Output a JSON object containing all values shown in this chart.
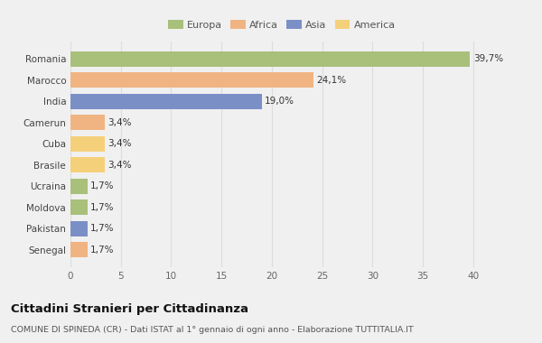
{
  "countries": [
    "Romania",
    "Marocco",
    "India",
    "Camerun",
    "Cuba",
    "Brasile",
    "Ucraina",
    "Moldova",
    "Pakistan",
    "Senegal"
  ],
  "values": [
    39.7,
    24.1,
    19.0,
    3.4,
    3.4,
    3.4,
    1.7,
    1.7,
    1.7,
    1.7
  ],
  "labels": [
    "39,7%",
    "24,1%",
    "19,0%",
    "3,4%",
    "3,4%",
    "3,4%",
    "1,7%",
    "1,7%",
    "1,7%",
    "1,7%"
  ],
  "colors": [
    "#a8c07a",
    "#f0b482",
    "#7b8fc7",
    "#f0b482",
    "#f5d07a",
    "#f5d07a",
    "#a8c07a",
    "#a8c07a",
    "#7b8fc7",
    "#f0b482"
  ],
  "legend_labels": [
    "Europa",
    "Africa",
    "Asia",
    "America"
  ],
  "legend_colors": [
    "#a8c07a",
    "#f0b482",
    "#7b8fc7",
    "#f5d07a"
  ],
  "xlim": [
    0,
    42
  ],
  "xticks": [
    0,
    5,
    10,
    15,
    20,
    25,
    30,
    35,
    40
  ],
  "title": "Cittadini Stranieri per Cittadinanza",
  "subtitle": "COMUNE DI SPINEDA (CR) - Dati ISTAT al 1° gennaio di ogni anno - Elaborazione TUTTITALIA.IT",
  "background_color": "#f0f0f0",
  "grid_color": "#dddddd",
  "bar_height": 0.72
}
